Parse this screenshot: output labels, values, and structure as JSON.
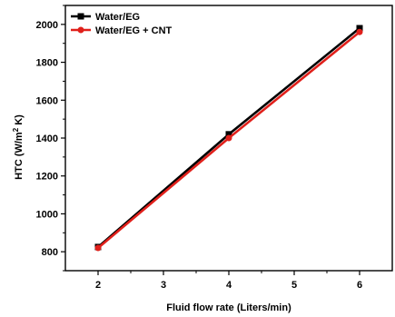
{
  "chart_data": {
    "type": "line",
    "title": "",
    "xlabel": "Fluid flow rate (Liters/min)",
    "ylabel_base": "HTC (W/m",
    "ylabel_sup": "2",
    "ylabel_tail": " K)",
    "x": [
      2,
      4,
      6
    ],
    "xlim": [
      1.5,
      6.5
    ],
    "ylim": [
      700,
      2100
    ],
    "xticks": [
      2,
      3,
      4,
      5,
      6
    ],
    "yticks": [
      800,
      1000,
      1200,
      1400,
      1600,
      1800,
      2000
    ],
    "grid": false,
    "legend_position": "top-left",
    "series": [
      {
        "name": "Water/EG",
        "values": [
          825,
          1420,
          1980
        ],
        "color": "#000000",
        "marker": "square"
      },
      {
        "name": "Water/EG + CNT",
        "values": [
          820,
          1400,
          1960
        ],
        "color": "#e0201b",
        "marker": "circle"
      }
    ]
  }
}
